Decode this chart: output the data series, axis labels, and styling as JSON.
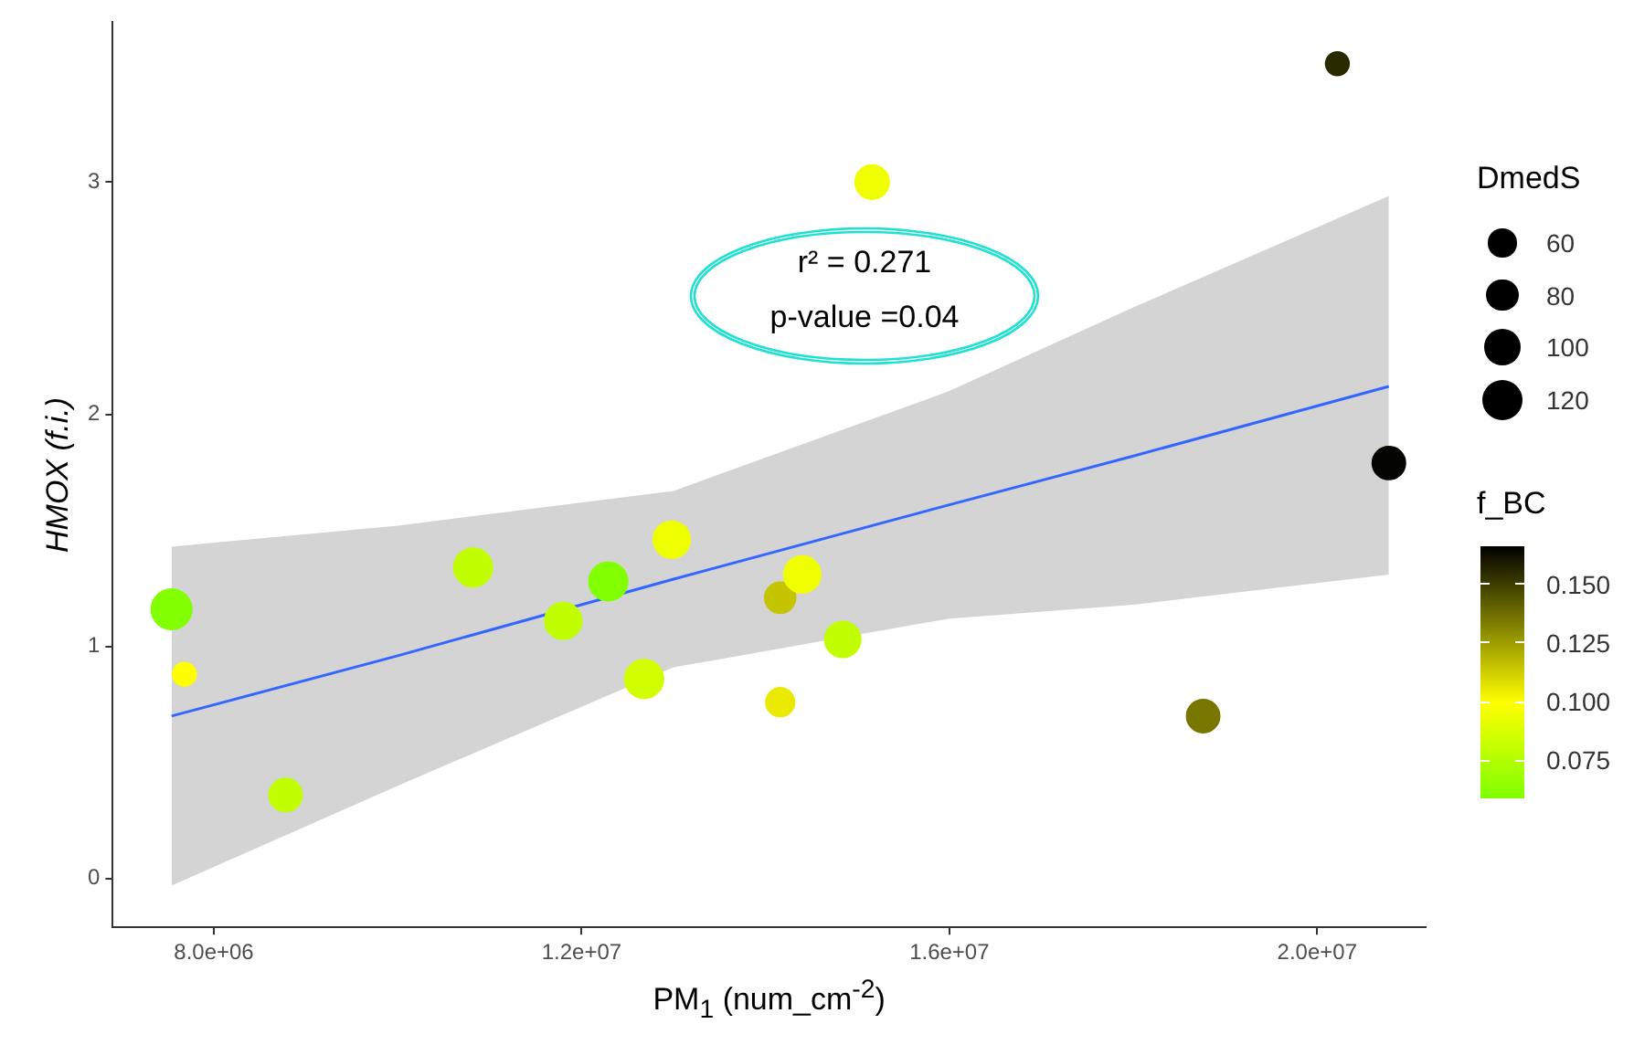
{
  "chart_data": {
    "type": "bubble",
    "xlabel": "PM$_{1}$ (num_cm$^{-2}$)",
    "ylabel": "HMOX (f.i.)",
    "legend_title": "DmedS",
    "clabel": "f_BC",
    "annotations": [
      "r² = 0.271",
      "p-value =0.04"
    ],
    "xlim": [
      6900000,
      21180000
    ],
    "xticks": [
      {
        "value": 8000000,
        "label": "8.0e+06"
      },
      {
        "value": 12000000,
        "label": "1.2e+07"
      },
      {
        "value": 16000000,
        "label": "1.6e+07"
      },
      {
        "value": 20000000,
        "label": "2.0e+07"
      }
    ],
    "ylim": [
      -0.21,
      3.69
    ],
    "yticks": [
      0,
      1,
      2,
      3
    ],
    "size_legend": [
      60,
      80,
      100,
      120
    ],
    "clim": [
      0.059,
      0.166
    ],
    "cticks": [
      0.075,
      {
        "value": 0.1,
        "label": "0.100"
      },
      0.125,
      {
        "value": 0.15,
        "label": "0.150"
      }
    ],
    "grid": false,
    "series": [
      {
        "x": [
          7540000,
          7680000,
          8780000,
          10820000,
          11800000,
          12290000,
          12680000,
          12980000,
          14160000,
          14400000,
          14160000,
          14840000,
          15160000,
          18760000,
          20220000,
          20780000
        ],
        "values": [
          1.16,
          0.88,
          0.36,
          1.34,
          1.11,
          1.28,
          0.86,
          1.46,
          1.21,
          1.31,
          0.76,
          1.03,
          3.0,
          0.7,
          3.51,
          1.79
        ],
        "sizes": [
          120,
          40,
          80,
          110,
          100,
          110,
          110,
          100,
          70,
          100,
          60,
          95,
          85,
          80,
          40,
          80
        ],
        "colors": [
          "#82ff00",
          "#ffff00",
          "#c1ff00",
          "#c1ff00",
          "#c1ff00",
          "#82ff00",
          "#d1ff00",
          "#f0ff00",
          "#c4c400",
          "#f0ff00",
          "#eaea00",
          "#c1ff00",
          "#f0ff00",
          "#777700",
          "#2a2a00",
          "#040400"
        ],
        "cvalues": [
          0.06,
          0.1,
          0.08,
          0.08,
          0.08,
          0.06,
          0.085,
          0.095,
          0.115,
          0.095,
          0.105,
          0.08,
          0.095,
          0.135,
          0.155,
          0.165
        ]
      },
      {
        "type": "line",
        "color": "#3366ff",
        "x": [
          7540000,
          10000000,
          13000000,
          16000000,
          18000000,
          20780000
        ],
        "values": [
          0.7,
          0.96,
          1.29,
          1.61,
          1.82,
          2.12
        ],
        "lower": [
          -0.03,
          0.4,
          0.91,
          1.12,
          1.18,
          1.31
        ],
        "upper": [
          1.43,
          1.52,
          1.67,
          2.1,
          2.46,
          2.94
        ]
      }
    ]
  }
}
